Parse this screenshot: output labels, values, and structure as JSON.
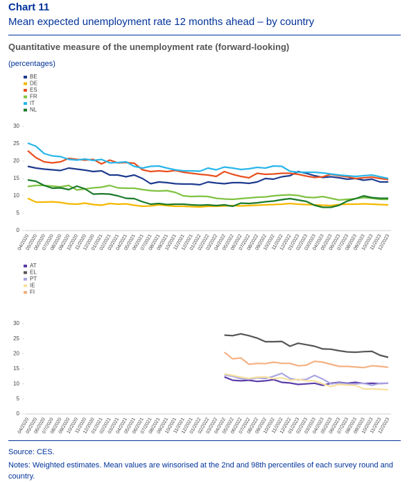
{
  "header": {
    "title": "Chart 11",
    "subtitle": "Mean expected unemployment rate 12 months ahead – by country",
    "heading": "Quantitative measure of the unemployment rate (forward-looking)",
    "unit": "(percentages)"
  },
  "chart_data": [
    {
      "type": "line",
      "legend": "top-left",
      "categories": [
        "04/2020",
        "05/2020",
        "06/2020",
        "07/2020",
        "08/2020",
        "09/2020",
        "10/2020",
        "11/2020",
        "12/2020",
        "01/2021",
        "02/2021",
        "03/2021",
        "04/2021",
        "05/2021",
        "06/2021",
        "07/2021",
        "08/2021",
        "09/2021",
        "10/2021",
        "11/2021",
        "12/2021",
        "01/2022",
        "02/2022",
        "03/2022",
        "04/2022",
        "05/2022",
        "06/2022",
        "07/2022",
        "08/2022",
        "09/2022",
        "10/2022",
        "11/2022",
        "12/2022",
        "01/2023",
        "02/2023",
        "03/2023",
        "04/2023",
        "05/2023",
        "06/2023",
        "07/2023",
        "08/2023",
        "09/2023",
        "10/2023",
        "11/2023",
        "12/2023"
      ],
      "ylim": [
        0,
        30
      ],
      "yticks": [
        0,
        5,
        10,
        15,
        20,
        25,
        30
      ],
      "series": [
        {
          "name": "BE",
          "color": "#1f3b8f",
          "values": [
            18.5,
            18,
            17.7,
            17.5,
            17.3,
            18,
            17.7,
            17.4,
            17,
            17.2,
            16,
            16,
            15.5,
            16,
            15,
            13.5,
            14,
            13.8,
            13.5,
            13.4,
            13.4,
            13.2,
            14,
            13.7,
            13.5,
            13.8,
            13.8,
            13.6,
            14,
            15,
            14.8,
            15.5,
            15.8,
            17,
            16.5,
            15.8,
            15.3,
            15.5,
            15.2,
            14.8,
            15,
            14.5,
            14.8,
            14,
            14
          ]
        },
        {
          "name": "DE",
          "color": "#f5b800",
          "values": [
            9.3,
            8.2,
            8.2,
            8.3,
            8.1,
            7.7,
            7.6,
            7.9,
            7.5,
            7.3,
            7.8,
            7.6,
            7.7,
            7.3,
            7,
            7.1,
            7.4,
            7.2,
            7,
            7,
            6.9,
            6.8,
            7,
            7,
            7.1,
            7.2,
            7.1,
            7.2,
            7.3,
            7.4,
            7.5,
            7.6,
            7.8,
            7.6,
            7.5,
            7.4,
            7.3,
            7.2,
            7.5,
            7.6,
            7.6,
            7.7,
            7.6,
            7.5,
            7.4
          ]
        },
        {
          "name": "ES",
          "color": "#e8501e",
          "values": [
            23,
            21,
            19.8,
            19.5,
            19.8,
            20.8,
            20.5,
            20.3,
            20.5,
            19.2,
            20.3,
            19.5,
            19.6,
            19.4,
            17.5,
            17,
            17.2,
            17,
            17.3,
            16.8,
            16.5,
            16.2,
            16,
            15.6,
            17,
            16.2,
            15.6,
            15.2,
            16.5,
            16.2,
            16.3,
            16.5,
            16.5,
            16.2,
            15.7,
            15.3,
            15.5,
            16.2,
            15.8,
            15.5,
            15,
            15.2,
            15.4,
            15,
            14.7
          ]
        },
        {
          "name": "FR",
          "color": "#7fc241",
          "values": [
            12.7,
            13,
            13,
            12.8,
            12.6,
            13,
            11.7,
            12,
            12.3,
            12.5,
            13,
            12.3,
            12.2,
            12.2,
            11.8,
            11.5,
            11.4,
            11.5,
            11,
            10,
            9.8,
            9.9,
            9.8,
            9.3,
            9.1,
            9,
            9.2,
            9.4,
            9.6,
            9.7,
            10,
            10.2,
            10.3,
            10.1,
            9.6,
            9.5,
            9.8,
            9.3,
            8.8,
            9,
            9.2,
            9.5,
            9.3,
            9,
            9
          ]
        },
        {
          "name": "IT",
          "color": "#29b6e8",
          "values": [
            25.2,
            24.3,
            22.2,
            21.5,
            21.3,
            20.5,
            20.3,
            20.6,
            20.2,
            20.5,
            19.5,
            19.6,
            19.8,
            18.5,
            18,
            18.5,
            18.6,
            18,
            17.5,
            17.2,
            17.2,
            17.1,
            18,
            17.5,
            18.3,
            18,
            17.6,
            17.8,
            18.2,
            18,
            18.6,
            18.5,
            17.1,
            16.8,
            16.8,
            16.8,
            16.6,
            16.3,
            16,
            15.8,
            15.6,
            15.8,
            16,
            15.5,
            15
          ]
        },
        {
          "name": "NL",
          "color": "#1b7a2a",
          "values": [
            14.6,
            14.2,
            13,
            12.2,
            12.3,
            11.8,
            12.8,
            12,
            10.5,
            10.6,
            10.5,
            10,
            9.3,
            9.2,
            8.3,
            7.6,
            7.8,
            7.5,
            7.6,
            7.6,
            7.4,
            7.3,
            7.4,
            7.2,
            7.4,
            7,
            7.9,
            7.8,
            8,
            8.3,
            8.5,
            8.9,
            9.2,
            8.8,
            8.4,
            7.3,
            6.7,
            6.7,
            7.3,
            8.5,
            9.2,
            10,
            9.5,
            9.3,
            9.3
          ]
        }
      ]
    },
    {
      "type": "line",
      "legend": "top-left",
      "categories": [
        "04/2020",
        "05/2020",
        "06/2020",
        "07/2020",
        "08/2020",
        "09/2020",
        "10/2020",
        "11/2020",
        "12/2020",
        "01/2021",
        "02/2021",
        "03/2021",
        "04/2021",
        "05/2021",
        "06/2021",
        "07/2021",
        "08/2021",
        "09/2021",
        "10/2021",
        "11/2021",
        "12/2021",
        "01/2022",
        "02/2022",
        "03/2022",
        "04/2022",
        "05/2022",
        "06/2022",
        "07/2022",
        "08/2022",
        "09/2022",
        "10/2022",
        "11/2022",
        "12/2022",
        "01/2023",
        "02/2023",
        "03/2023",
        "04/2023",
        "05/2023",
        "06/2023",
        "07/2023",
        "08/2023",
        "09/2023",
        "10/2023",
        "11/2023",
        "12/2023"
      ],
      "ylim": [
        0,
        30
      ],
      "yticks": [
        0,
        5,
        10,
        15,
        20,
        25,
        30
      ],
      "series": [
        {
          "name": "AT",
          "color": "#5b3ca8",
          "values": [
            null,
            null,
            null,
            null,
            null,
            null,
            null,
            null,
            null,
            null,
            null,
            null,
            null,
            null,
            null,
            null,
            null,
            null,
            null,
            null,
            null,
            null,
            null,
            null,
            12.3,
            11.2,
            11,
            11.2,
            10.8,
            11,
            11.4,
            10.5,
            10.3,
            9.8,
            10,
            10.2,
            9.5,
            10.2,
            10.5,
            10.2,
            10.5,
            10.1,
            10.2,
            10.1,
            10.2
          ]
        },
        {
          "name": "EL",
          "color": "#555555",
          "values": [
            null,
            null,
            null,
            null,
            null,
            null,
            null,
            null,
            null,
            null,
            null,
            null,
            null,
            null,
            null,
            null,
            null,
            null,
            null,
            null,
            null,
            null,
            null,
            null,
            26.2,
            26,
            26.6,
            26,
            25.2,
            24,
            24,
            24.1,
            22.5,
            23.5,
            23,
            22.5,
            21.6,
            21.5,
            21,
            20.6,
            20.5,
            20.7,
            20.8,
            19.5,
            18.8
          ]
        },
        {
          "name": "PT",
          "color": "#a8a6e0",
          "values": [
            null,
            null,
            null,
            null,
            null,
            null,
            null,
            null,
            null,
            null,
            null,
            null,
            null,
            null,
            null,
            null,
            null,
            null,
            null,
            null,
            null,
            null,
            null,
            null,
            13,
            12.5,
            11.7,
            11.5,
            12,
            11.8,
            12.5,
            13.5,
            11.8,
            11.3,
            11.5,
            12.8,
            11.6,
            10,
            10.3,
            10,
            10,
            10.2,
            9.5,
            10.2,
            10.2
          ]
        },
        {
          "name": "IE",
          "color": "#f7df9e",
          "values": [
            null,
            null,
            null,
            null,
            null,
            null,
            null,
            null,
            null,
            null,
            null,
            null,
            null,
            null,
            null,
            null,
            null,
            null,
            null,
            null,
            null,
            null,
            null,
            null,
            13.3,
            12.8,
            12.2,
            11.8,
            12.2,
            12.3,
            11.7,
            12,
            11.2,
            11.5,
            11,
            11,
            10,
            9.1,
            9.8,
            9.6,
            9.5,
            8.3,
            8.3,
            8.2,
            8
          ]
        },
        {
          "name": "FI",
          "color": "#f4b183",
          "values": [
            null,
            null,
            null,
            null,
            null,
            null,
            null,
            null,
            null,
            null,
            null,
            null,
            null,
            null,
            null,
            null,
            null,
            null,
            null,
            null,
            null,
            null,
            null,
            null,
            20.5,
            18.3,
            18.6,
            16.5,
            16.8,
            16.7,
            17.2,
            16.8,
            16.8,
            16,
            16.2,
            17.5,
            17.2,
            16.5,
            15.8,
            15.8,
            15.6,
            15.4,
            16,
            15.8,
            15.5
          ]
        }
      ]
    }
  ],
  "footer": {
    "source": "Source: CES.",
    "notes": "Notes: Weighted estimates. Mean values are winsorised at the 2nd and 98th percentiles of each survey round and country."
  }
}
